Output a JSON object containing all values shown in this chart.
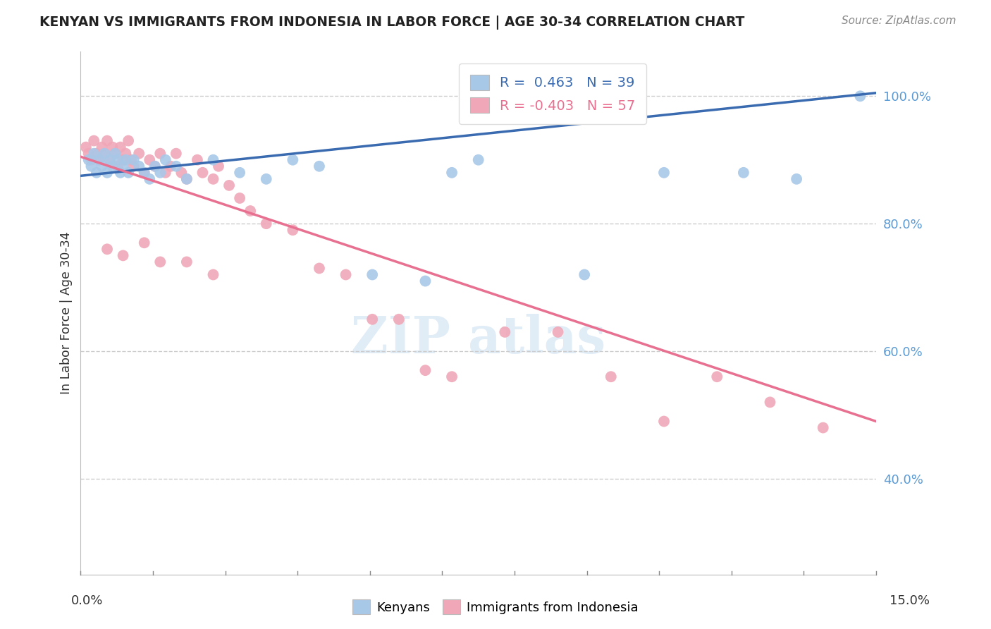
{
  "title": "KENYAN VS IMMIGRANTS FROM INDONESIA IN LABOR FORCE | AGE 30-34 CORRELATION CHART",
  "source": "Source: ZipAtlas.com",
  "ylabel": "In Labor Force | Age 30-34",
  "xmin": 0.0,
  "xmax": 15.0,
  "ymin": 25.0,
  "ymax": 107.0,
  "yticks": [
    40.0,
    60.0,
    80.0,
    100.0
  ],
  "kenyan_R": 0.463,
  "kenyan_N": 39,
  "indonesia_R": -0.403,
  "indonesia_N": 57,
  "kenyan_color": "#A8C8E8",
  "indonesia_color": "#F0A8B8",
  "kenyan_line_color": "#3A6BB0",
  "indonesia_line_color": "#E87090",
  "kenyan_line_y0": 87.5,
  "kenyan_line_y1": 100.5,
  "indonesia_line_y0": 90.5,
  "indonesia_line_y1": 49.0,
  "kenyan_x": [
    0.15,
    0.2,
    0.25,
    0.3,
    0.35,
    0.4,
    0.45,
    0.5,
    0.55,
    0.6,
    0.65,
    0.7,
    0.75,
    0.8,
    0.85,
    0.9,
    1.0,
    1.1,
    1.2,
    1.3,
    1.4,
    1.5,
    1.6,
    1.8,
    2.0,
    2.5,
    3.0,
    3.5,
    4.0,
    4.5,
    5.5,
    6.5,
    7.0,
    7.5,
    9.5,
    11.0,
    12.5,
    13.5,
    14.7
  ],
  "kenyan_y": [
    90,
    89,
    91,
    88,
    90,
    89,
    91,
    88,
    90,
    89,
    91,
    90,
    88,
    89,
    90,
    88,
    90,
    89,
    88,
    87,
    89,
    88,
    90,
    89,
    87,
    90,
    88,
    87,
    90,
    89,
    72,
    71,
    88,
    90,
    72,
    88,
    88,
    87,
    100
  ],
  "indonesia_x": [
    0.1,
    0.15,
    0.2,
    0.25,
    0.3,
    0.35,
    0.4,
    0.45,
    0.5,
    0.55,
    0.6,
    0.65,
    0.7,
    0.75,
    0.8,
    0.85,
    0.9,
    0.95,
    1.0,
    1.1,
    1.2,
    1.3,
    1.4,
    1.5,
    1.6,
    1.7,
    1.8,
    1.9,
    2.0,
    2.2,
    2.3,
    2.5,
    2.6,
    2.8,
    3.0,
    3.2,
    3.5,
    4.0,
    4.5,
    5.0,
    5.5,
    6.0,
    6.5,
    7.0,
    8.0,
    9.0,
    10.0,
    11.0,
    12.0,
    13.0,
    14.0,
    0.5,
    1.5,
    2.0,
    2.5,
    0.8,
    1.2
  ],
  "indonesia_y": [
    92,
    91,
    90,
    93,
    91,
    90,
    92,
    91,
    93,
    90,
    92,
    91,
    89,
    92,
    90,
    91,
    93,
    90,
    89,
    91,
    88,
    90,
    89,
    91,
    88,
    89,
    91,
    88,
    87,
    90,
    88,
    87,
    89,
    86,
    84,
    82,
    80,
    79,
    73,
    72,
    65,
    65,
    57,
    56,
    63,
    63,
    56,
    49,
    56,
    52,
    48,
    76,
    74,
    74,
    72,
    75,
    77
  ]
}
